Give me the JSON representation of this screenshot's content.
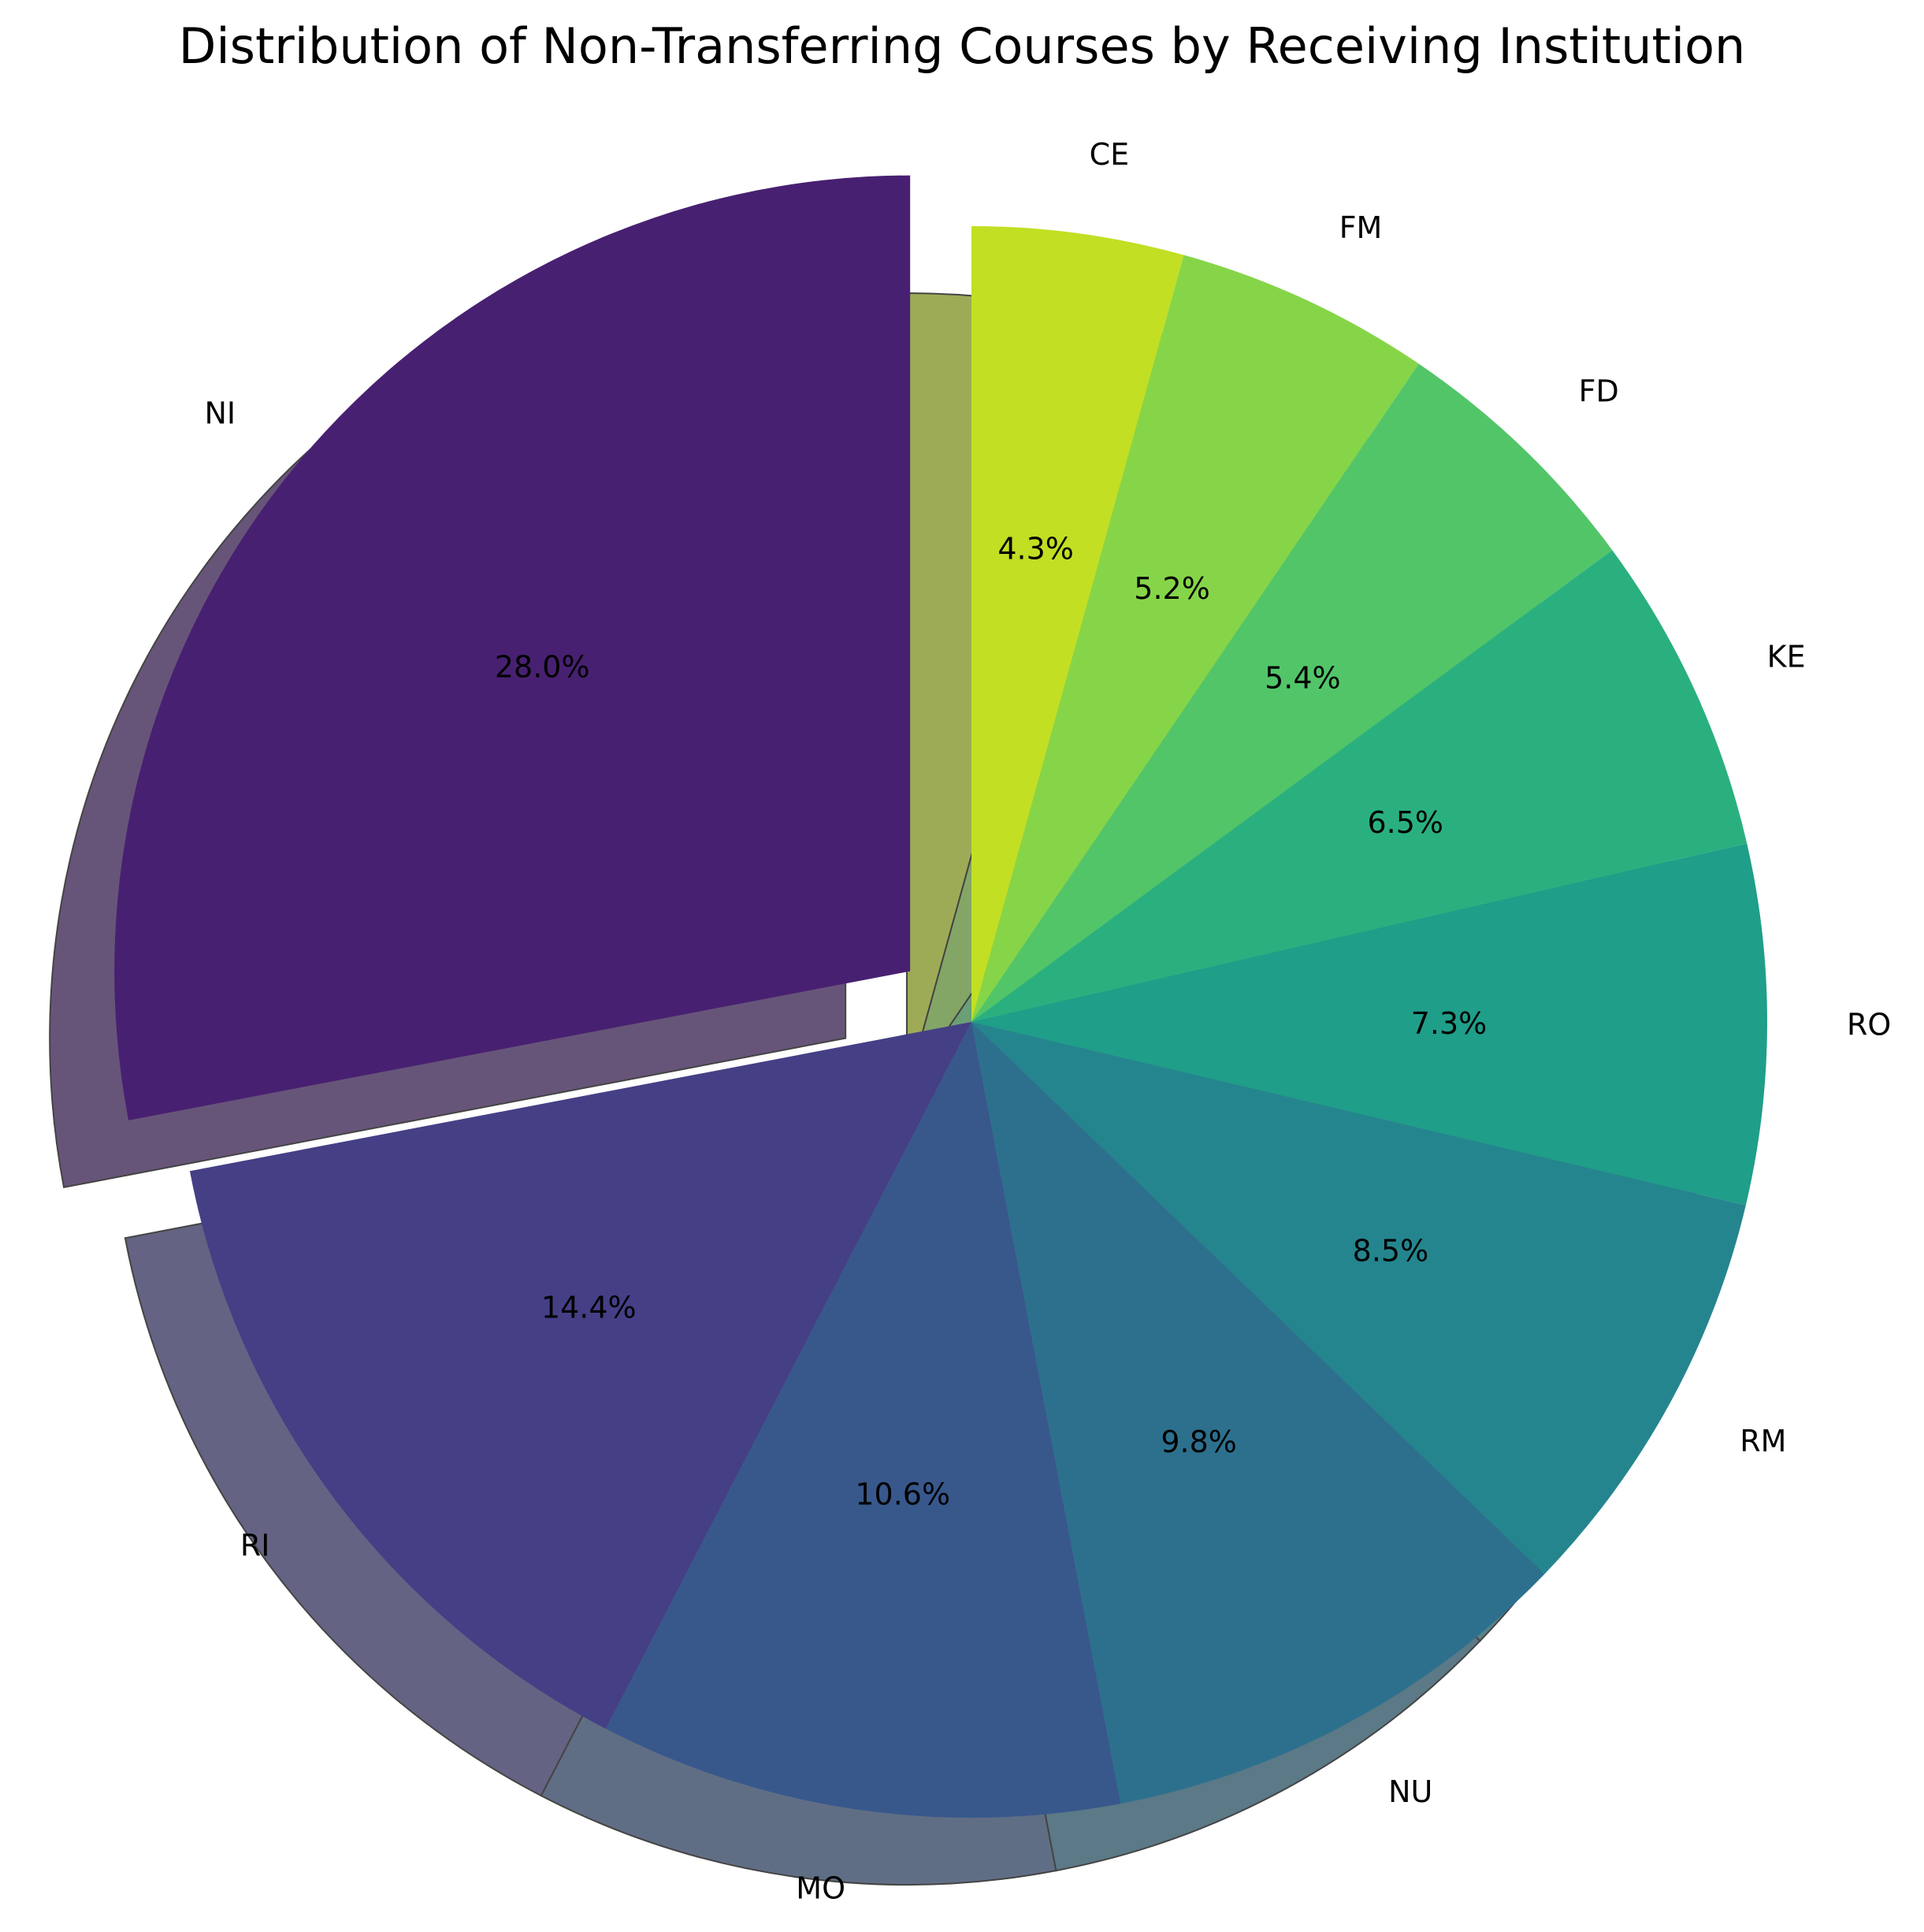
{
  "chart_data": {
    "type": "pie",
    "title": "Distribution of Non-Transferring Courses by Receiving Institution",
    "start_angle_deg": 90,
    "direction": "clockwise",
    "shadow": true,
    "exploded": [
      "NI"
    ],
    "slices": [
      {
        "label": "CE",
        "value": 4.3,
        "pct": "4.3%",
        "color": "#c2df23"
      },
      {
        "label": "FM",
        "value": 5.2,
        "pct": "5.2%",
        "color": "#86d549"
      },
      {
        "label": "FD",
        "value": 5.4,
        "pct": "5.4%",
        "color": "#52c569"
      },
      {
        "label": "KE",
        "value": 6.5,
        "pct": "6.5%",
        "color": "#2ab07f"
      },
      {
        "label": "RO",
        "value": 7.3,
        "pct": "7.3%",
        "color": "#1f9e89"
      },
      {
        "label": "RM",
        "value": 8.5,
        "pct": "8.5%",
        "color": "#25858e"
      },
      {
        "label": "NU",
        "value": 9.8,
        "pct": "9.8%",
        "color": "#2d708e"
      },
      {
        "label": "MO",
        "value": 10.6,
        "pct": "10.6%",
        "color": "#38588c"
      },
      {
        "label": "RI",
        "value": 14.4,
        "pct": "14.4%",
        "color": "#453f86"
      },
      {
        "label": "NI",
        "value": 28.0,
        "pct": "28.0%",
        "color": "#482071"
      }
    ]
  }
}
